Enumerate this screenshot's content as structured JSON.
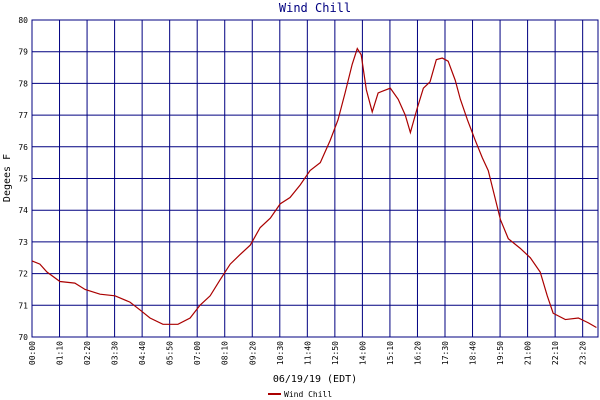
{
  "chart_data": {
    "type": "line",
    "title": "Wind Chill",
    "x_label": "06/19/19 (EDT)",
    "y_label": "Degees F",
    "x": [
      0,
      20,
      38,
      71,
      109,
      135,
      173,
      211,
      249,
      275,
      300,
      333,
      371,
      402,
      427,
      453,
      478,
      504,
      529,
      555,
      580,
      606,
      631,
      656,
      682,
      707,
      733,
      758,
      778,
      796,
      814,
      827,
      837,
      850,
      865,
      880,
      911,
      931,
      949,
      962,
      979,
      995,
      1012,
      1028,
      1043,
      1058,
      1076,
      1089,
      1107,
      1127,
      1145,
      1160,
      1175,
      1191,
      1211,
      1241,
      1267,
      1292,
      1310,
      1325,
      1356,
      1389,
      1414,
      1435
    ],
    "series": [
      {
        "name": "Wind Chill",
        "color": "#aa0000",
        "values": [
          72.4,
          72.3,
          72.05,
          71.75,
          71.7,
          71.5,
          71.35,
          71.3,
          71.1,
          70.85,
          70.6,
          70.4,
          70.4,
          70.6,
          71.0,
          71.3,
          71.8,
          72.3,
          72.6,
          72.9,
          73.45,
          73.75,
          74.2,
          74.4,
          74.8,
          75.25,
          75.5,
          76.2,
          76.85,
          77.7,
          78.6,
          79.1,
          78.9,
          77.8,
          77.1,
          77.7,
          77.85,
          77.5,
          77.0,
          76.45,
          77.2,
          77.85,
          78.05,
          78.75,
          78.8,
          78.7,
          78.1,
          77.5,
          76.85,
          76.2,
          75.65,
          75.25,
          74.5,
          73.7,
          73.1,
          72.8,
          72.5,
          72.05,
          71.3,
          70.75,
          70.55,
          70.6,
          70.45,
          70.3
        ]
      }
    ],
    "xlim": [
      0,
      1439
    ],
    "xticks": [
      {
        "value": 0,
        "label": "00:00"
      },
      {
        "value": 70,
        "label": "01:10"
      },
      {
        "value": 140,
        "label": "02:20"
      },
      {
        "value": 210,
        "label": "03:30"
      },
      {
        "value": 280,
        "label": "04:40"
      },
      {
        "value": 350,
        "label": "05:50"
      },
      {
        "value": 420,
        "label": "07:00"
      },
      {
        "value": 490,
        "label": "08:10"
      },
      {
        "value": 560,
        "label": "09:20"
      },
      {
        "value": 630,
        "label": "10:30"
      },
      {
        "value": 700,
        "label": "11:40"
      },
      {
        "value": 770,
        "label": "12:50"
      },
      {
        "value": 840,
        "label": "14:00"
      },
      {
        "value": 910,
        "label": "15:10"
      },
      {
        "value": 980,
        "label": "16:20"
      },
      {
        "value": 1050,
        "label": "17:30"
      },
      {
        "value": 1120,
        "label": "18:40"
      },
      {
        "value": 1190,
        "label": "19:50"
      },
      {
        "value": 1260,
        "label": "21:00"
      },
      {
        "value": 1330,
        "label": "22:10"
      },
      {
        "value": 1400,
        "label": "23:20"
      }
    ],
    "ylim": [
      70,
      80
    ],
    "yticks": [
      70,
      71,
      72,
      73,
      74,
      75,
      76,
      77,
      78,
      79,
      80
    ],
    "grid": true,
    "grid_color": "#000080"
  }
}
